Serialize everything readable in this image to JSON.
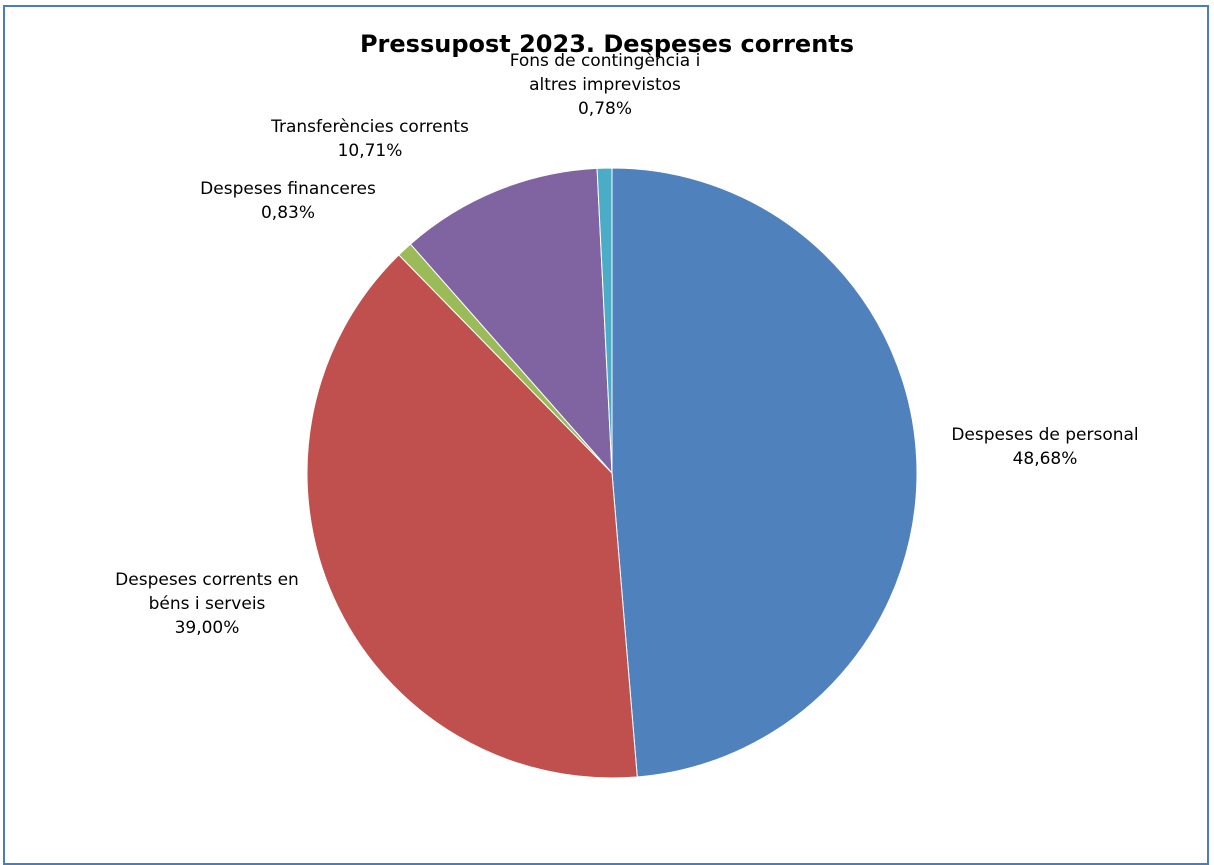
{
  "chart_data": {
    "type": "pie",
    "title": "Pressupost 2023. Despeses corrents",
    "slices": [
      {
        "label_lines": [
          "Despeses de personal"
        ],
        "value": 48.68,
        "value_label": "48,68%",
        "color": "#4f81bd"
      },
      {
        "label_lines": [
          "Despeses corrents en",
          "béns i serveis"
        ],
        "value": 39.0,
        "value_label": "39,00%",
        "color": "#c0504d"
      },
      {
        "label_lines": [
          "Despeses financeres"
        ],
        "value": 0.83,
        "value_label": "0,83%",
        "color": "#9bbb59"
      },
      {
        "label_lines": [
          "Transferències corrents"
        ],
        "value": 10.71,
        "value_label": "10,71%",
        "color": "#8064a2"
      },
      {
        "label_lines": [
          "Fons de contingència i",
          "altres imprevistos"
        ],
        "value": 0.78,
        "value_label": "0,78%",
        "color": "#4bacc6"
      }
    ],
    "start_angle": "12 o'clock",
    "direction": "clockwise",
    "legend": "none",
    "border_color": "#4a7ebb"
  }
}
